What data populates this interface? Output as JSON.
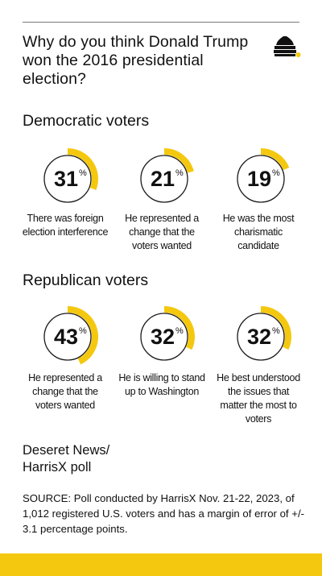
{
  "title": "Why do you think Donald Trump won the 2016 presidential election?",
  "colors": {
    "accent": "#f4c80f",
    "ring": "#1a1a1a",
    "text": "#111111"
  },
  "logo_icon": "beehive-icon",
  "credit": {
    "line1": "Deseret News/",
    "line2": "HarrisX poll"
  },
  "source": "SOURCE: Poll conducted by HarrisX Nov. 21-22, 2023, of 1,012 registered U.S. voters and has a margin of error of +/- 3.1 percentage points.",
  "chart_data": [
    {
      "type": "pie",
      "title": "Democratic voters",
      "unit": "%",
      "categories": [
        "There was foreign election interference",
        "He represented a change that the voters wanted",
        "He was the most charismatic candidate"
      ],
      "values": [
        31,
        21,
        19
      ]
    },
    {
      "type": "pie",
      "title": "Republican voters",
      "unit": "%",
      "categories": [
        "He represented a change that the voters wanted",
        "He is willing to stand up to Washington",
        "He best understood the issues that matter the most to voters"
      ],
      "values": [
        43,
        32,
        32
      ]
    }
  ]
}
